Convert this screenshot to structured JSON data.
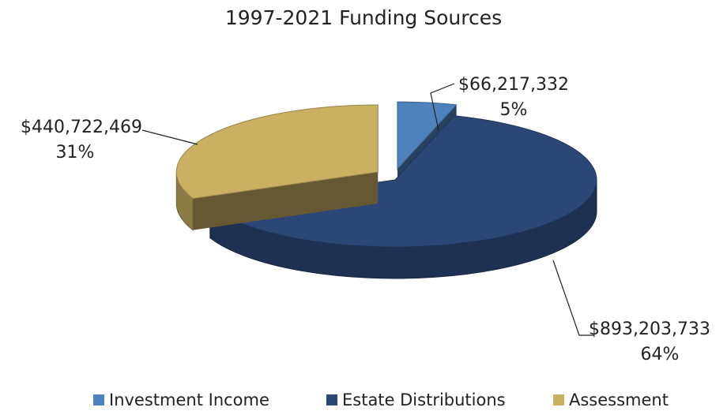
{
  "chart_data": {
    "type": "pie",
    "title": "1997-2021 Funding Sources",
    "categories": [
      "Investment Income",
      "Estate Distributions",
      "Assessment"
    ],
    "values": [
      66217332,
      893203733,
      440722469
    ],
    "value_labels": [
      "$66,217,332",
      "$893,203,733",
      "$440,722,469"
    ],
    "percent_labels": [
      "5%",
      "64%",
      "31%"
    ],
    "colors": [
      "#4f81bd",
      "#2c4676",
      "#c9b063"
    ],
    "legend": "bottom"
  }
}
